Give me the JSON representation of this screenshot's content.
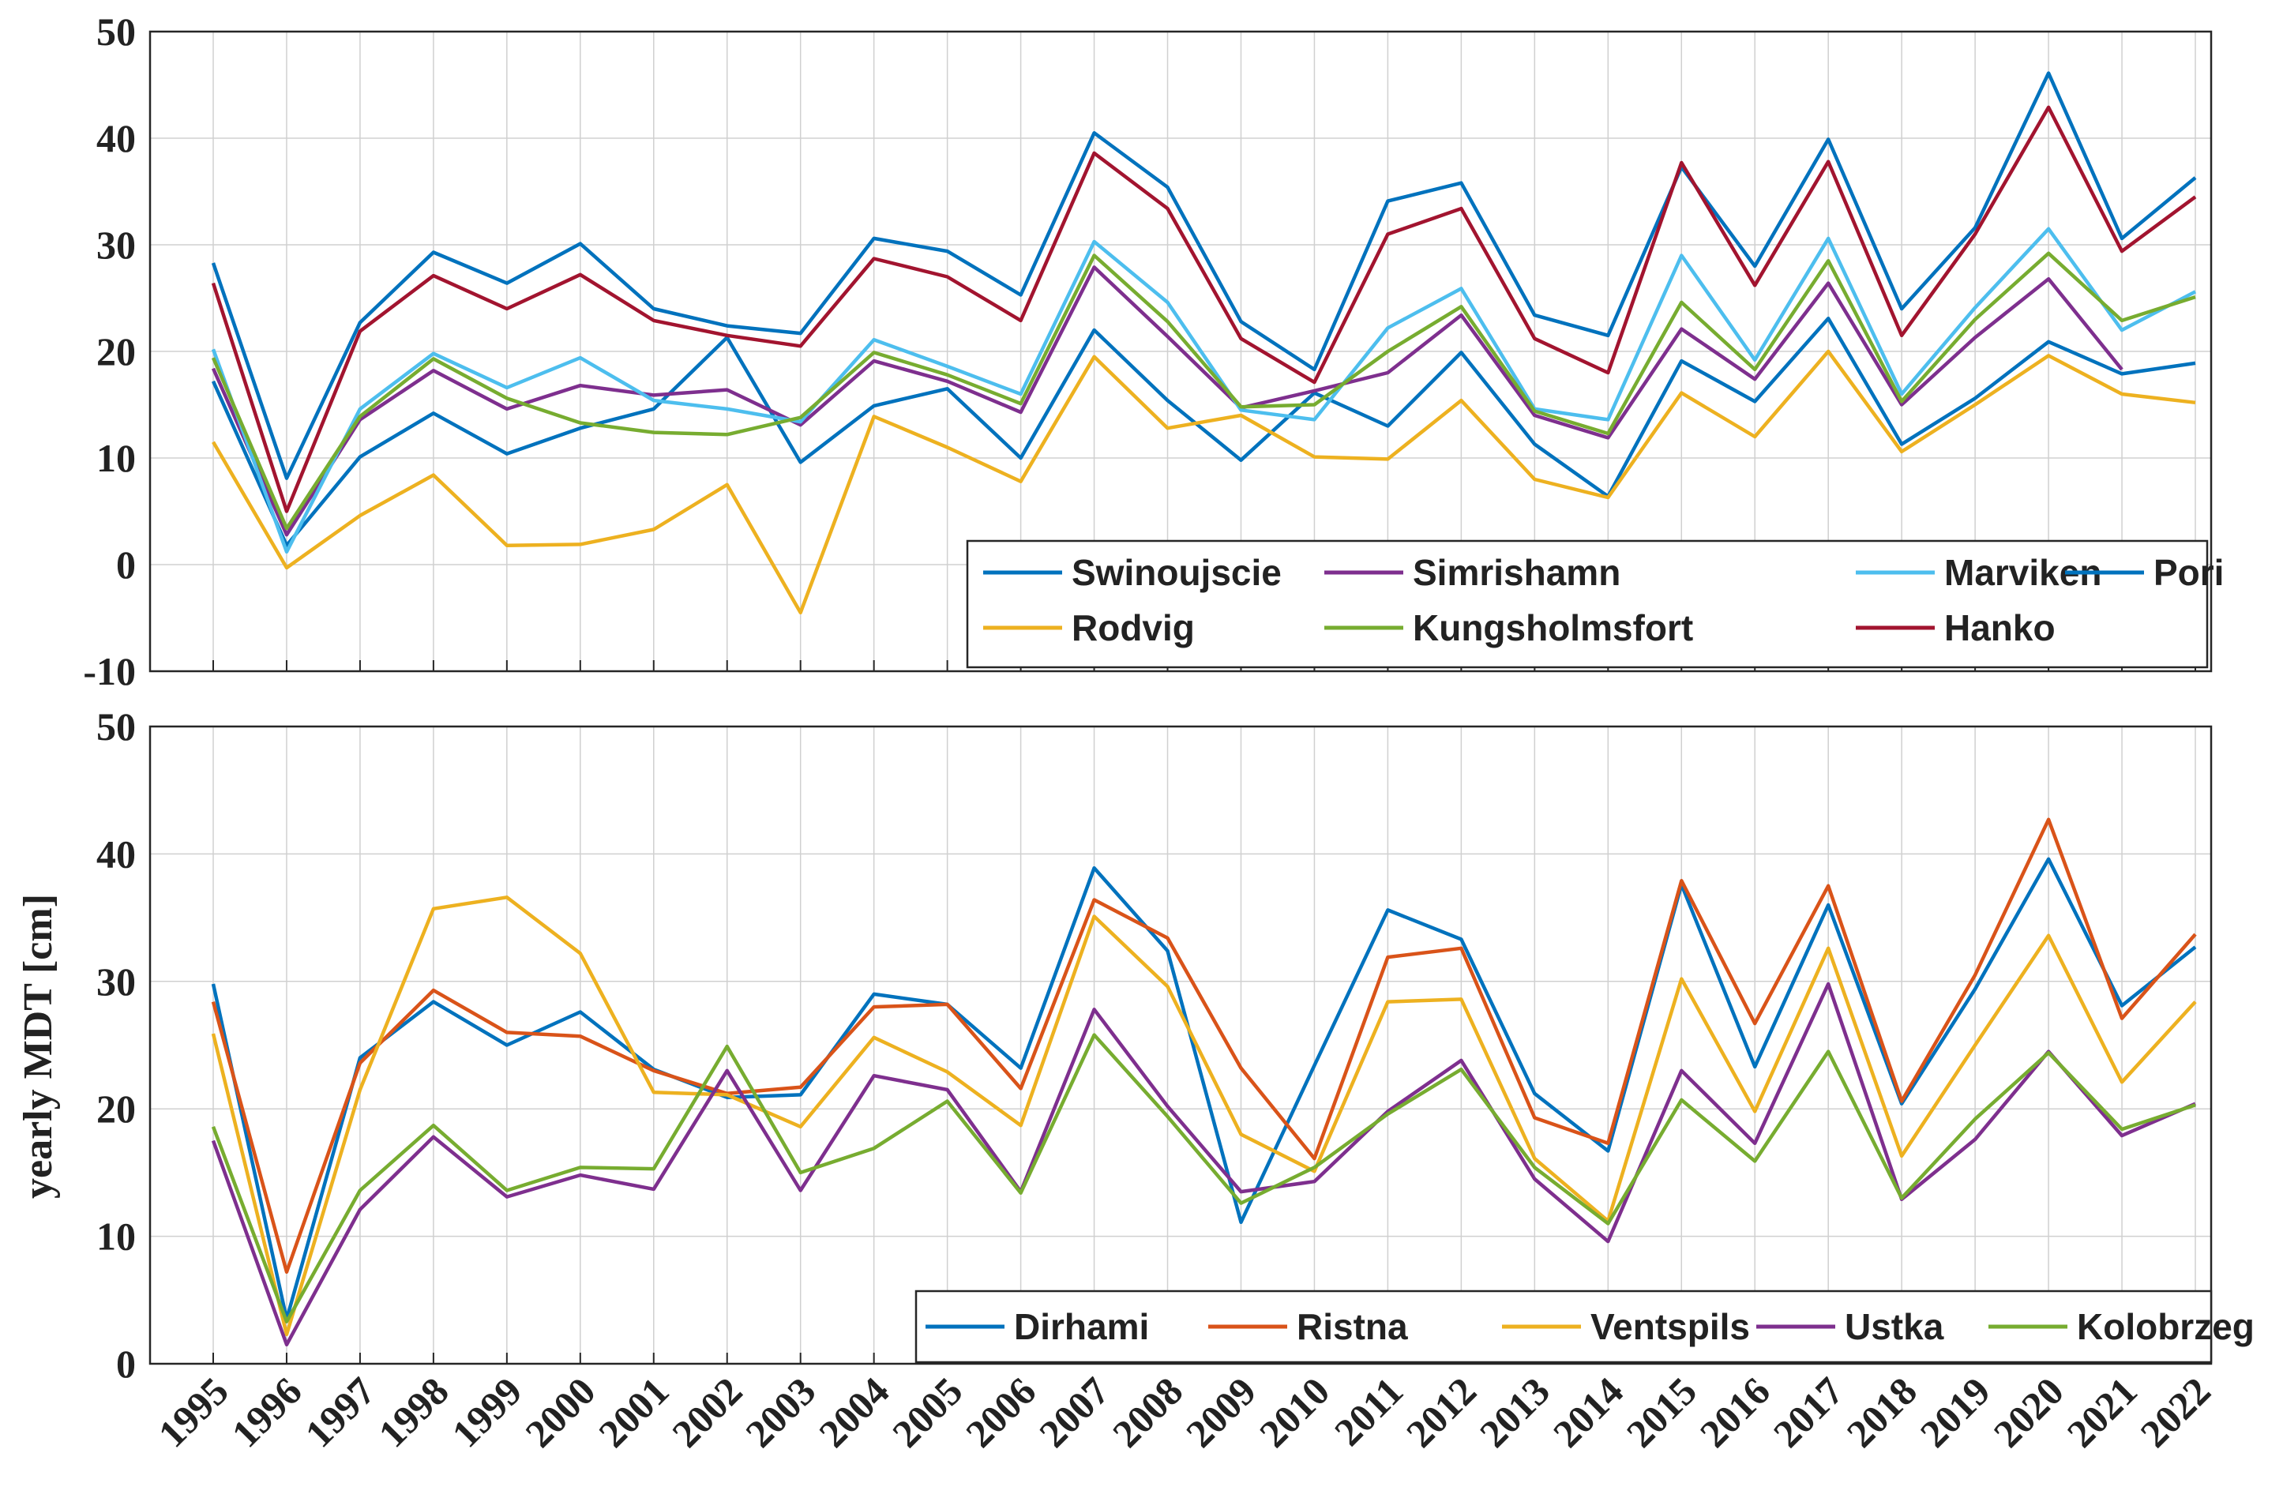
{
  "chart_data": [
    {
      "type": "line",
      "title": "",
      "xlabel": "",
      "ylabel": "",
      "ylim": [
        -10,
        50
      ],
      "yticks": [
        -10,
        0,
        10,
        20,
        30,
        40,
        50
      ],
      "x": [
        1995,
        1996,
        1997,
        1998,
        1999,
        2000,
        2001,
        2002,
        2003,
        2004,
        2005,
        2006,
        2007,
        2008,
        2009,
        2010,
        2011,
        2012,
        2013,
        2014,
        2015,
        2016,
        2017,
        2018,
        2019,
        2020,
        2021,
        2022
      ],
      "grid": true,
      "legend_position": "bottom-right",
      "series": [
        {
          "name": "Swinoujscie",
          "color": "#0072BD",
          "values": [
            17.2,
            1.8,
            10.1,
            14.2,
            10.4,
            12.8,
            14.6,
            21.3,
            9.6,
            14.9,
            16.5,
            10.0,
            22.0,
            15.4,
            9.8,
            16.1,
            13.0,
            19.9,
            11.3,
            6.4,
            19.1,
            15.3,
            23.1,
            11.3,
            15.6,
            20.9,
            17.9,
            18.9
          ]
        },
        {
          "name": "Simrishamn",
          "color": "#7E2F8E",
          "values": [
            18.4,
            2.8,
            13.6,
            18.2,
            14.6,
            16.8,
            15.9,
            16.4,
            13.1,
            19.1,
            17.2,
            14.3,
            27.9,
            21.4,
            14.7,
            16.3,
            18.0,
            23.4,
            14.0,
            11.9,
            22.1,
            17.4,
            26.4,
            15.0,
            21.3,
            26.8,
            18.3,
            null
          ]
        },
        {
          "name": "Marviken",
          "color": "#4DBEEE",
          "values": [
            20.2,
            1.2,
            14.6,
            19.8,
            16.6,
            19.4,
            15.4,
            14.6,
            13.4,
            21.1,
            18.6,
            16.0,
            30.3,
            24.6,
            14.5,
            13.6,
            22.2,
            25.9,
            14.6,
            13.6,
            29.0,
            19.2,
            30.6,
            16.0,
            24.1,
            31.5,
            22.0,
            25.6
          ]
        },
        {
          "name": "Pori",
          "color": "#0072BD",
          "values": [
            28.3,
            8.1,
            22.7,
            29.3,
            26.4,
            30.1,
            24.0,
            22.4,
            21.7,
            30.6,
            29.4,
            25.3,
            40.5,
            35.4,
            22.8,
            18.3,
            34.1,
            35.8,
            23.4,
            21.5,
            37.3,
            28.0,
            39.9,
            24.0,
            31.6,
            46.1,
            30.6,
            36.3
          ]
        },
        {
          "name": "Rodvig",
          "color": "#EDB120",
          "values": [
            11.5,
            -0.3,
            4.6,
            8.4,
            1.8,
            1.9,
            3.3,
            7.5,
            -4.5,
            13.9,
            11.0,
            7.8,
            19.5,
            12.8,
            14.0,
            10.1,
            9.9,
            15.4,
            8.0,
            6.3,
            16.1,
            12.0,
            20.0,
            10.6,
            15.0,
            19.6,
            16.0,
            15.2
          ]
        },
        {
          "name": "Kungsholmsfort",
          "color": "#77AC30",
          "values": [
            19.4,
            3.4,
            13.9,
            19.3,
            15.6,
            13.3,
            12.4,
            12.2,
            13.8,
            19.9,
            17.8,
            15.1,
            29.0,
            22.8,
            14.8,
            15.0,
            20.0,
            24.2,
            14.4,
            12.3,
            24.6,
            18.3,
            28.5,
            15.3,
            23.0,
            29.2,
            22.9,
            25.1
          ]
        },
        {
          "name": "Hanko",
          "color": "#A2142F",
          "values": [
            26.4,
            5.0,
            21.9,
            27.1,
            24.0,
            27.2,
            22.9,
            21.5,
            20.5,
            28.7,
            27.0,
            22.9,
            38.6,
            33.4,
            21.2,
            17.1,
            31.0,
            33.4,
            21.2,
            18.0,
            37.7,
            26.2,
            37.8,
            21.5,
            31.0,
            42.9,
            29.4,
            34.5
          ]
        }
      ],
      "legend": [
        "Swinoujscie",
        "Simrishamn",
        "Marviken",
        "Pori",
        "Rodvig",
        "Kungsholmsfort",
        "Hanko"
      ]
    },
    {
      "type": "line",
      "title": "",
      "xlabel": "",
      "ylabel": "yearly MDT [cm]",
      "ylim": [
        0,
        50
      ],
      "yticks": [
        0,
        10,
        20,
        30,
        40,
        50
      ],
      "x": [
        1995,
        1996,
        1997,
        1998,
        1999,
        2000,
        2001,
        2002,
        2003,
        2004,
        2005,
        2006,
        2007,
        2008,
        2009,
        2010,
        2011,
        2012,
        2013,
        2014,
        2015,
        2016,
        2017,
        2018,
        2019,
        2020,
        2021,
        2022
      ],
      "grid": true,
      "legend_position": "bottom-right",
      "series": [
        {
          "name": "Dirhami",
          "color": "#0072BD",
          "values": [
            29.8,
            3.5,
            24.0,
            28.4,
            25.0,
            27.6,
            23.1,
            20.9,
            21.1,
            29.0,
            28.2,
            23.2,
            38.9,
            32.4,
            11.1,
            23.4,
            35.6,
            33.3,
            21.2,
            16.7,
            37.6,
            23.3,
            36.0,
            20.4,
            29.4,
            39.6,
            28.1,
            32.7
          ]
        },
        {
          "name": "Ristna",
          "color": "#D95319",
          "values": [
            28.4,
            7.2,
            23.6,
            29.3,
            26.0,
            25.7,
            23.0,
            21.2,
            21.7,
            28.0,
            28.2,
            21.6,
            36.4,
            33.4,
            23.2,
            16.1,
            31.9,
            32.6,
            19.3,
            17.3,
            37.9,
            26.7,
            37.5,
            20.6,
            30.5,
            42.7,
            27.1,
            33.7
          ]
        },
        {
          "name": "Ventspils",
          "color": "#EDB120",
          "values": [
            25.9,
            2.3,
            21.5,
            35.7,
            36.6,
            32.2,
            21.3,
            21.1,
            18.6,
            25.6,
            22.9,
            18.7,
            35.1,
            29.6,
            18.0,
            15.1,
            28.4,
            28.6,
            16.1,
            11.2,
            30.2,
            19.8,
            32.6,
            16.3,
            25.0,
            33.6,
            22.1,
            28.4
          ]
        },
        {
          "name": "Ustka",
          "color": "#7E2F8E",
          "values": [
            17.5,
            1.5,
            12.1,
            17.8,
            13.1,
            14.8,
            13.7,
            23.0,
            13.6,
            22.6,
            21.5,
            13.5,
            27.8,
            20.2,
            13.5,
            14.3,
            19.8,
            23.8,
            14.5,
            9.6,
            23.0,
            17.3,
            29.8,
            12.9,
            17.6,
            24.5,
            17.9,
            20.4
          ]
        },
        {
          "name": "Kolobrzeg",
          "color": "#77AC30",
          "values": [
            18.6,
            3.3,
            13.6,
            18.7,
            13.6,
            15.4,
            15.3,
            24.9,
            15.0,
            16.9,
            20.6,
            13.4,
            25.8,
            19.4,
            12.6,
            15.4,
            19.6,
            23.1,
            15.4,
            11.0,
            20.7,
            15.9,
            24.5,
            13.0,
            19.2,
            24.4,
            18.4,
            20.3
          ]
        }
      ],
      "legend": [
        "Dirhami",
        "Ristna",
        "Ventspils",
        "Ustka",
        "Kolobrzeg"
      ]
    }
  ]
}
